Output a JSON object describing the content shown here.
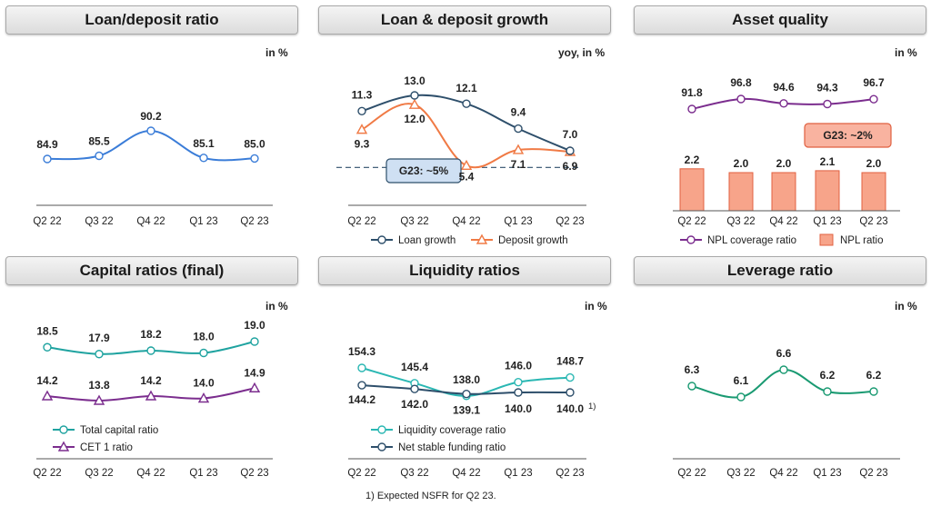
{
  "footnote": "1) Expected NSFR for Q2 23.",
  "chart_data": [
    {
      "title": "Loan/deposit ratio",
      "unit": "in %",
      "type": "line",
      "categories": [
        "Q2 22",
        "Q3 22",
        "Q4 22",
        "Q1 23",
        "Q2 23"
      ],
      "series": [
        {
          "values": [
            84.9,
            85.5,
            90.2,
            85.1,
            85.0
          ],
          "color": "#3b7dd8",
          "marker": "circle"
        }
      ]
    },
    {
      "title": "Loan & deposit growth",
      "unit": "yoy, in %",
      "type": "line",
      "categories": [
        "Q2 22",
        "Q3 22",
        "Q4 22",
        "Q1 23",
        "Q2 23"
      ],
      "series": [
        {
          "name": "Loan growth",
          "values": [
            11.3,
            13.0,
            12.1,
            9.4,
            7.0
          ],
          "color": "#2e4f6b",
          "marker": "circle"
        },
        {
          "name": "Deposit growth",
          "values": [
            9.3,
            12.0,
            5.4,
            7.1,
            6.9
          ],
          "color": "#f07a45",
          "marker": "triangle"
        }
      ],
      "guidance": {
        "label": "G23: ~5%",
        "value": 5
      }
    },
    {
      "title": "Asset quality",
      "unit": "in %",
      "type": "bar",
      "categories": [
        "Q2 22",
        "Q3 22",
        "Q4 22",
        "Q1 23",
        "Q2 23"
      ],
      "series": [
        {
          "name": "NPL coverage ratio",
          "type": "line",
          "values": [
            91.8,
            96.8,
            94.6,
            94.3,
            96.7
          ],
          "color": "#7b2d8e",
          "marker": "circle"
        },
        {
          "name": "NPL ratio",
          "type": "bar",
          "values": [
            2.2,
            2.0,
            2.0,
            2.1,
            2.0
          ],
          "color": "#f7a48a"
        }
      ],
      "guidance": {
        "label": "G23: ~2%",
        "value": 2
      }
    },
    {
      "title": "Capital ratios (final)",
      "unit": "in %",
      "type": "line",
      "categories": [
        "Q2 22",
        "Q3 22",
        "Q4 22",
        "Q1 23",
        "Q2 23"
      ],
      "series": [
        {
          "name": "Total capital ratio",
          "values": [
            18.5,
            17.9,
            18.2,
            18.0,
            19.0
          ],
          "color": "#1fa3a0",
          "marker": "circle"
        },
        {
          "name": "CET 1 ratio",
          "values": [
            14.2,
            13.8,
            14.2,
            14.0,
            14.9
          ],
          "color": "#7b2d8e",
          "marker": "triangle"
        }
      ]
    },
    {
      "title": "Liquidity ratios",
      "unit": "in %",
      "type": "line",
      "categories": [
        "Q2 22",
        "Q3 22",
        "Q4 22",
        "Q1 23",
        "Q2 23"
      ],
      "series": [
        {
          "name": "Liquidity coverage ratio",
          "values": [
            154.3,
            145.4,
            138.0,
            146.0,
            148.7
          ],
          "color": "#2ab7b3",
          "marker": "circle"
        },
        {
          "name": "Net stable funding ratio",
          "values": [
            144.2,
            142.0,
            139.1,
            140.0,
            140.0
          ],
          "color": "#2e4f6b",
          "marker": "circle"
        }
      ],
      "footnote_marker": "1)"
    },
    {
      "title": "Leverage ratio",
      "unit": "in %",
      "type": "line",
      "categories": [
        "Q2 22",
        "Q3 22",
        "Q4 22",
        "Q1 23",
        "Q2 23"
      ],
      "series": [
        {
          "values": [
            6.3,
            6.1,
            6.6,
            6.2,
            6.2
          ],
          "color": "#1a9a72",
          "marker": "circle"
        }
      ]
    }
  ]
}
